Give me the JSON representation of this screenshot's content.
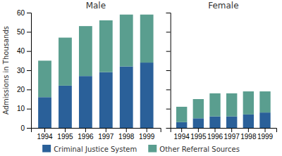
{
  "chart_data": [
    {
      "type": "bar",
      "stacked": true,
      "title": "Male",
      "categories": [
        "1994",
        "1995",
        "1996",
        "1997",
        "1998",
        "1999"
      ],
      "series": [
        {
          "name": "Criminal Justice System",
          "color": "#2a6099",
          "values": [
            16,
            22,
            27,
            29,
            32,
            34
          ]
        },
        {
          "name": "Other Referral Sources",
          "color": "#5a9e8f",
          "values": [
            19,
            25,
            26,
            27,
            27,
            25
          ]
        }
      ],
      "ylabel": "Admissions in Thousands",
      "ylim": [
        0,
        60
      ],
      "yticks": [
        0,
        10,
        20,
        30,
        40,
        50,
        60
      ],
      "grid": false,
      "legend": "bottom"
    },
    {
      "type": "bar",
      "stacked": true,
      "title": "Female",
      "categories": [
        "1994",
        "1995",
        "1996",
        "1997",
        "1998",
        "1999"
      ],
      "series": [
        {
          "name": "Criminal Justice System",
          "color": "#2a6099",
          "values": [
            3,
            5,
            6,
            6,
            7,
            8
          ]
        },
        {
          "name": "Other Referral Sources",
          "color": "#5a9e8f",
          "values": [
            8,
            10,
            12,
            12,
            12,
            11
          ]
        }
      ],
      "ylim": [
        0,
        60
      ],
      "yticks": [
        0,
        10,
        20,
        30,
        40,
        50,
        60
      ],
      "grid": false,
      "tick_labels": "x",
      "legend": "bottom"
    }
  ]
}
